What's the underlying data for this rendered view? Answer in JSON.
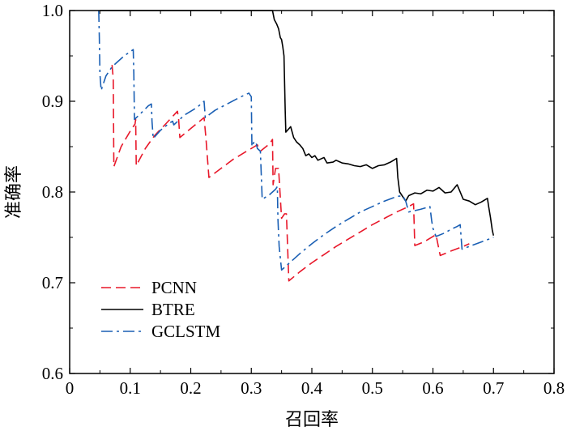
{
  "chart_data": {
    "type": "line",
    "xlabel": "召回率",
    "ylabel": "准确率",
    "xlim": [
      0,
      0.8
    ],
    "ylim": [
      0.6,
      1.0
    ],
    "xticks": [
      "0",
      "0.1",
      "0.2",
      "0.3",
      "0.4",
      "0.5",
      "0.6",
      "0.7",
      "0.8"
    ],
    "yticks": [
      "0.6",
      "0.7",
      "0.8",
      "0.9",
      "1.0"
    ],
    "grid": false,
    "legend": "bottom-left",
    "series": [
      {
        "name": "PCNN",
        "color": "#e8182a",
        "dash": "dashed",
        "points": [
          [
            0.07,
            0.94
          ],
          [
            0.072,
            0.925
          ],
          [
            0.073,
            0.828
          ],
          [
            0.085,
            0.85
          ],
          [
            0.1,
            0.867
          ],
          [
            0.108,
            0.875
          ],
          [
            0.109,
            0.88
          ],
          [
            0.11,
            0.829
          ],
          [
            0.125,
            0.848
          ],
          [
            0.14,
            0.862
          ],
          [
            0.16,
            0.876
          ],
          [
            0.178,
            0.889
          ],
          [
            0.18,
            0.88
          ],
          [
            0.182,
            0.86
          ],
          [
            0.2,
            0.87
          ],
          [
            0.222,
            0.882
          ],
          [
            0.225,
            0.86
          ],
          [
            0.23,
            0.816
          ],
          [
            0.25,
            0.826
          ],
          [
            0.27,
            0.836
          ],
          [
            0.29,
            0.844
          ],
          [
            0.305,
            0.85
          ],
          [
            0.31,
            0.852
          ],
          [
            0.315,
            0.845
          ],
          [
            0.33,
            0.853
          ],
          [
            0.335,
            0.858
          ],
          [
            0.336,
            0.808
          ],
          [
            0.34,
            0.826
          ],
          [
            0.345,
            0.826
          ],
          [
            0.35,
            0.771
          ],
          [
            0.355,
            0.776
          ],
          [
            0.358,
            0.776
          ],
          [
            0.362,
            0.702
          ],
          [
            0.38,
            0.712
          ],
          [
            0.4,
            0.722
          ],
          [
            0.42,
            0.731
          ],
          [
            0.44,
            0.74
          ],
          [
            0.46,
            0.748
          ],
          [
            0.48,
            0.756
          ],
          [
            0.5,
            0.764
          ],
          [
            0.52,
            0.771
          ],
          [
            0.54,
            0.778
          ],
          [
            0.56,
            0.784
          ],
          [
            0.568,
            0.787
          ],
          [
            0.57,
            0.741
          ],
          [
            0.585,
            0.745
          ],
          [
            0.6,
            0.751
          ],
          [
            0.605,
            0.753
          ],
          [
            0.612,
            0.73
          ],
          [
            0.63,
            0.735
          ],
          [
            0.65,
            0.74
          ],
          [
            0.66,
            0.743
          ]
        ]
      },
      {
        "name": "BTRE",
        "color": "#000000",
        "dash": "solid",
        "points": [
          [
            0.05,
            1.0
          ],
          [
            0.335,
            1.0
          ],
          [
            0.338,
            0.99
          ],
          [
            0.342,
            0.985
          ],
          [
            0.345,
            0.98
          ],
          [
            0.348,
            0.97
          ],
          [
            0.35,
            0.968
          ],
          [
            0.352,
            0.96
          ],
          [
            0.354,
            0.95
          ],
          [
            0.355,
            0.92
          ],
          [
            0.356,
            0.89
          ],
          [
            0.357,
            0.866
          ],
          [
            0.365,
            0.872
          ],
          [
            0.37,
            0.86
          ],
          [
            0.375,
            0.855
          ],
          [
            0.38,
            0.852
          ],
          [
            0.385,
            0.848
          ],
          [
            0.39,
            0.84
          ],
          [
            0.395,
            0.842
          ],
          [
            0.4,
            0.838
          ],
          [
            0.405,
            0.84
          ],
          [
            0.41,
            0.835
          ],
          [
            0.42,
            0.838
          ],
          [
            0.425,
            0.832
          ],
          [
            0.435,
            0.833
          ],
          [
            0.44,
            0.835
          ],
          [
            0.45,
            0.832
          ],
          [
            0.46,
            0.831
          ],
          [
            0.47,
            0.829
          ],
          [
            0.48,
            0.828
          ],
          [
            0.49,
            0.83
          ],
          [
            0.5,
            0.826
          ],
          [
            0.51,
            0.829
          ],
          [
            0.52,
            0.83
          ],
          [
            0.53,
            0.833
          ],
          [
            0.54,
            0.837
          ],
          [
            0.542,
            0.816
          ],
          [
            0.545,
            0.8
          ],
          [
            0.555,
            0.79
          ],
          [
            0.56,
            0.796
          ],
          [
            0.57,
            0.799
          ],
          [
            0.58,
            0.798
          ],
          [
            0.59,
            0.802
          ],
          [
            0.6,
            0.801
          ],
          [
            0.61,
            0.805
          ],
          [
            0.62,
            0.799
          ],
          [
            0.63,
            0.8
          ],
          [
            0.64,
            0.808
          ],
          [
            0.65,
            0.792
          ],
          [
            0.66,
            0.79
          ],
          [
            0.67,
            0.786
          ],
          [
            0.68,
            0.789
          ],
          [
            0.69,
            0.793
          ],
          [
            0.692,
            0.784
          ],
          [
            0.695,
            0.772
          ],
          [
            0.698,
            0.758
          ],
          [
            0.7,
            0.752
          ]
        ]
      },
      {
        "name": "GCLSTM",
        "color": "#1a5fb4",
        "dash": "dashdot",
        "points": [
          [
            0.048,
            1.0
          ],
          [
            0.049,
            0.97
          ],
          [
            0.05,
            0.93
          ],
          [
            0.052,
            0.912
          ],
          [
            0.06,
            0.928
          ],
          [
            0.07,
            0.938
          ],
          [
            0.09,
            0.95
          ],
          [
            0.105,
            0.957
          ],
          [
            0.106,
            0.93
          ],
          [
            0.107,
            0.88
          ],
          [
            0.115,
            0.885
          ],
          [
            0.13,
            0.895
          ],
          [
            0.135,
            0.897
          ],
          [
            0.136,
            0.878
          ],
          [
            0.138,
            0.859
          ],
          [
            0.15,
            0.868
          ],
          [
            0.165,
            0.876
          ],
          [
            0.17,
            0.878
          ],
          [
            0.172,
            0.874
          ],
          [
            0.19,
            0.885
          ],
          [
            0.21,
            0.893
          ],
          [
            0.222,
            0.9
          ],
          [
            0.224,
            0.882
          ],
          [
            0.24,
            0.89
          ],
          [
            0.26,
            0.897
          ],
          [
            0.28,
            0.904
          ],
          [
            0.296,
            0.909
          ],
          [
            0.3,
            0.905
          ],
          [
            0.301,
            0.85
          ],
          [
            0.305,
            0.856
          ],
          [
            0.308,
            0.854
          ],
          [
            0.31,
            0.848
          ],
          [
            0.315,
            0.845
          ],
          [
            0.318,
            0.792
          ],
          [
            0.33,
            0.797
          ],
          [
            0.34,
            0.803
          ],
          [
            0.343,
            0.806
          ],
          [
            0.344,
            0.77
          ],
          [
            0.346,
            0.74
          ],
          [
            0.35,
            0.714
          ],
          [
            0.36,
            0.72
          ],
          [
            0.38,
            0.732
          ],
          [
            0.4,
            0.743
          ],
          [
            0.42,
            0.753
          ],
          [
            0.44,
            0.762
          ],
          [
            0.46,
            0.77
          ],
          [
            0.48,
            0.778
          ],
          [
            0.5,
            0.784
          ],
          [
            0.52,
            0.79
          ],
          [
            0.54,
            0.795
          ],
          [
            0.55,
            0.796
          ],
          [
            0.555,
            0.79
          ],
          [
            0.56,
            0.778
          ],
          [
            0.58,
            0.781
          ],
          [
            0.595,
            0.784
          ],
          [
            0.598,
            0.768
          ],
          [
            0.6,
            0.76
          ],
          [
            0.605,
            0.751
          ],
          [
            0.62,
            0.755
          ],
          [
            0.63,
            0.759
          ],
          [
            0.64,
            0.762
          ],
          [
            0.645,
            0.764
          ],
          [
            0.648,
            0.737
          ],
          [
            0.66,
            0.74
          ],
          [
            0.68,
            0.745
          ],
          [
            0.7,
            0.75
          ]
        ]
      }
    ]
  }
}
